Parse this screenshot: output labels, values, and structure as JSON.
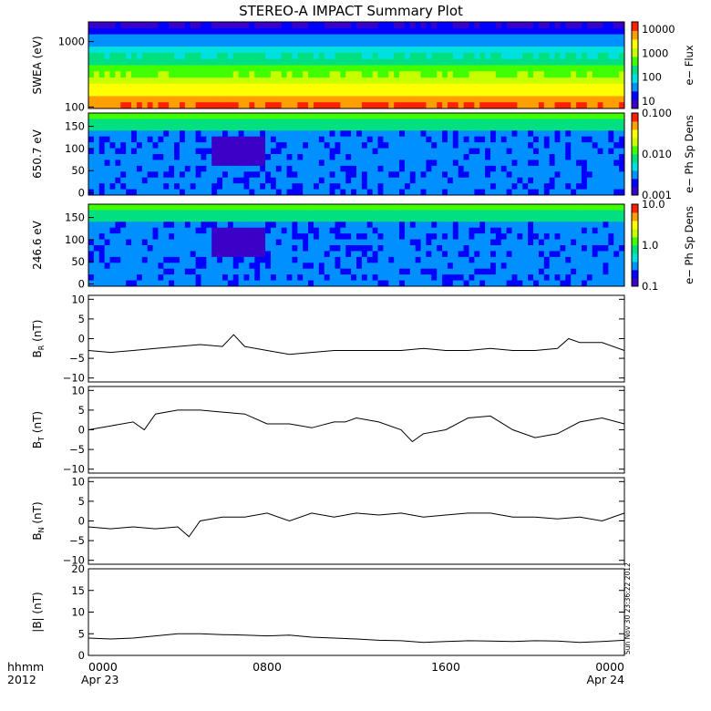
{
  "title": "STEREO-A IMPACT Summary Plot",
  "footer": {
    "label_hhmm": "hhmm",
    "label_year": "2012",
    "times": [
      "0000",
      "0800",
      "1600",
      "0000"
    ],
    "dates": [
      "Apr 23",
      "Apr 24"
    ]
  },
  "stamp": "Sun Nov 30 23:36:22 2012",
  "colors": {
    "axis": "#000000",
    "line": "#000000",
    "colormap": [
      "#3a00c8",
      "#0000ff",
      "#0090ff",
      "#00e0e0",
      "#00e080",
      "#40ff00",
      "#c8ff00",
      "#ffff00",
      "#ffa000",
      "#ff2000"
    ]
  },
  "chart_data": [
    {
      "type": "heatmap",
      "ylabel": "SWEA (eV)",
      "ylim": [
        95,
        2000
      ],
      "yscale": "log",
      "ytick_values": [
        100,
        1000
      ],
      "ytick_labels": [
        "100",
        "1000"
      ],
      "colorbar": {
        "label": "e− Flux",
        "scale": "log",
        "range": [
          5,
          20000
        ],
        "tick_values": [
          10,
          100,
          1000,
          10000
        ],
        "tick_labels": [
          "10",
          "100",
          "1000",
          "10000"
        ]
      }
    },
    {
      "type": "heatmap",
      "ylabel": "650.7 eV",
      "ylim": [
        -5,
        180
      ],
      "ytick_values": [
        0,
        50,
        100,
        150
      ],
      "ytick_labels": [
        "0",
        "50",
        "100",
        "150"
      ],
      "colorbar": {
        "label": "e− Ph Sp Dens",
        "scale": "log",
        "range": [
          0.001,
          0.1
        ],
        "tick_values": [
          0.001,
          0.01,
          0.1
        ],
        "tick_labels": [
          "0.001",
          "0.010",
          "0.100"
        ]
      }
    },
    {
      "type": "heatmap",
      "ylabel": "246.6 eV",
      "ylim": [
        -5,
        180
      ],
      "ytick_values": [
        0,
        50,
        100,
        150
      ],
      "ytick_labels": [
        "0",
        "50",
        "100",
        "150"
      ],
      "colorbar": {
        "label": "e− Ph Sp Dens",
        "scale": "log",
        "range": [
          0.1,
          10
        ],
        "tick_values": [
          0.1,
          1,
          10
        ],
        "tick_labels": [
          "0.1",
          "1.0",
          "10.0"
        ]
      }
    },
    {
      "type": "line",
      "ylabel_main": "B",
      "ylabel_sub": "R",
      "ylabel_unit": " (nT)",
      "ylim": [
        -11,
        11
      ],
      "ytick_values": [
        10,
        5,
        0,
        -5,
        -10
      ],
      "ytick_labels": [
        "10",
        "5",
        "0",
        "−5",
        "−10"
      ],
      "x_hours": [
        0,
        1,
        2,
        3,
        4,
        5,
        6,
        6.5,
        7,
        8,
        9,
        10,
        11,
        12,
        13,
        14,
        15,
        16,
        17,
        18,
        19,
        20,
        21,
        21.5,
        22,
        23,
        24
      ],
      "values": [
        -3,
        -3.5,
        -3,
        -2.5,
        -2,
        -1.5,
        -2,
        1,
        -2,
        -3,
        -4,
        -3.5,
        -3,
        -3,
        -3,
        -3,
        -2.5,
        -3,
        -3,
        -2.5,
        -3,
        -3,
        -2.5,
        0,
        -1,
        -1,
        -3
      ]
    },
    {
      "type": "line",
      "ylabel_main": "B",
      "ylabel_sub": "T",
      "ylabel_unit": " (nT)",
      "ylim": [
        -11,
        11
      ],
      "ytick_values": [
        10,
        5,
        0,
        -5,
        -10
      ],
      "ytick_labels": [
        "10",
        "5",
        "0",
        "−5",
        "−10"
      ],
      "x_hours": [
        0,
        1,
        2,
        2.5,
        3,
        4,
        5,
        6,
        7,
        8,
        9,
        10,
        11,
        11.5,
        12,
        13,
        14,
        14.5,
        15,
        16,
        17,
        18,
        19,
        20,
        21,
        22,
        23,
        24
      ],
      "values": [
        0,
        1,
        2,
        0,
        4,
        5,
        5,
        4.5,
        4,
        1.5,
        1.5,
        0.5,
        2,
        2,
        3,
        2,
        0,
        -3,
        -1,
        0,
        3,
        3.5,
        0,
        -2,
        -1,
        2,
        3,
        1.5
      ]
    },
    {
      "type": "line",
      "ylabel_main": "B",
      "ylabel_sub": "N",
      "ylabel_unit": " (nT)",
      "ylim": [
        -11,
        11
      ],
      "ytick_values": [
        10,
        5,
        0,
        -5,
        -10
      ],
      "ytick_labels": [
        "10",
        "5",
        "0",
        "−5",
        "−10"
      ],
      "x_hours": [
        0,
        1,
        2,
        3,
        4,
        4.5,
        5,
        6,
        7,
        8,
        9,
        10,
        11,
        12,
        13,
        14,
        15,
        16,
        17,
        18,
        19,
        20,
        21,
        22,
        23,
        24
      ],
      "values": [
        -1.5,
        -2,
        -1.5,
        -2,
        -1.5,
        -4,
        0,
        1,
        1,
        2,
        0,
        2,
        1,
        2,
        1.5,
        2,
        1,
        1.5,
        2,
        2,
        1,
        1,
        0.5,
        1,
        0,
        2
      ]
    },
    {
      "type": "line",
      "ylabel_main": "|B| (nT)",
      "ylim": [
        0,
        20
      ],
      "ytick_values": [
        20,
        15,
        10,
        5,
        0
      ],
      "ytick_labels": [
        "20",
        "15",
        "10",
        "5",
        "0"
      ],
      "x_hours": [
        0,
        1,
        2,
        3,
        4,
        5,
        6,
        7,
        8,
        9,
        10,
        11,
        12,
        13,
        14,
        15,
        16,
        17,
        18,
        19,
        20,
        21,
        22,
        23,
        24
      ],
      "values": [
        4,
        3.8,
        4,
        4.5,
        5,
        5,
        4.8,
        4.7,
        4.5,
        4.7,
        4.2,
        4,
        3.8,
        3.5,
        3.4,
        3,
        3.2,
        3.4,
        3.3,
        3.2,
        3.4,
        3.3,
        3,
        3.2,
        3.5
      ]
    }
  ]
}
